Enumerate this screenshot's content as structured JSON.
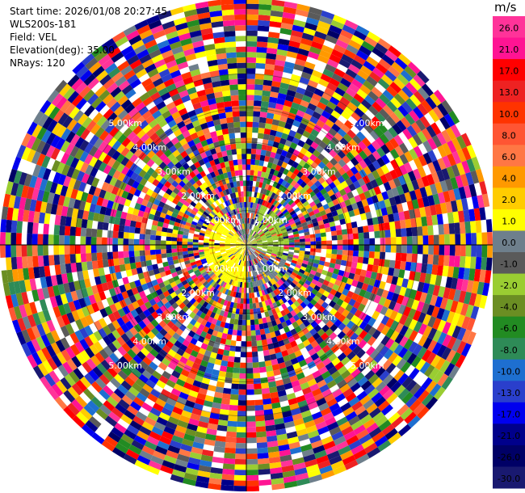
{
  "header": {
    "start_time": "Start time: 2026/01/08 20:27:45",
    "instrument": "WLS200s-181",
    "field": "Field: VEL",
    "elevation": "Elevation(deg): 35.00",
    "nrays": "NRays: 120"
  },
  "colorbar": {
    "unit": "m/s",
    "ticks": [
      "26.0",
      "21.0",
      "17.0",
      "13.0",
      "10.0",
      "8.0",
      "6.0",
      "4.0",
      "2.0",
      "1.0",
      "0.0",
      "-1.0",
      "-2.0",
      "-4.0",
      "-6.0",
      "-8.0",
      "-10.0",
      "-13.0",
      "-17.0",
      "-21.0",
      "-26.0",
      "-30.0"
    ],
    "colors": [
      "#ff3399",
      "#ff1493",
      "#ff0000",
      "#ee2222",
      "#ff3300",
      "#ff5533",
      "#ff7744",
      "#ff9900",
      "#ffcc00",
      "#ffff00",
      "#6e7f8c",
      "#5a5a5a",
      "#9acd32",
      "#6b8e23",
      "#228b22",
      "#2e8b57",
      "#1e6fd0",
      "#2a3fcc",
      "#0000ee",
      "#00008b",
      "#000066",
      "#191970"
    ]
  },
  "chart_data": {
    "type": "heatmap",
    "projection": "polar-ppi",
    "field": "VEL",
    "units": "m/s",
    "nrays": 120,
    "elevation_deg": 35.0,
    "range_ring_labels": [
      "1.00km",
      "2.00km",
      "3.00km",
      "4.00km",
      "5.00km"
    ],
    "range_rings_km": [
      1,
      2,
      3,
      4,
      5
    ],
    "max_range_km": 7.2,
    "color_levels": [
      26.0,
      21.0,
      17.0,
      13.0,
      10.0,
      8.0,
      6.0,
      4.0,
      2.0,
      1.0,
      0.0,
      -1.0,
      -2.0,
      -4.0,
      -6.0,
      -8.0,
      -10.0,
      -13.0,
      -17.0,
      -21.0,
      -26.0,
      -30.0
    ],
    "near_field_dominant": "positive 1.0–2.0 m/s (yellow) south-west, -2.0 to -4.0 m/s (green) north-east",
    "far_field": "noise spanning full color range"
  }
}
